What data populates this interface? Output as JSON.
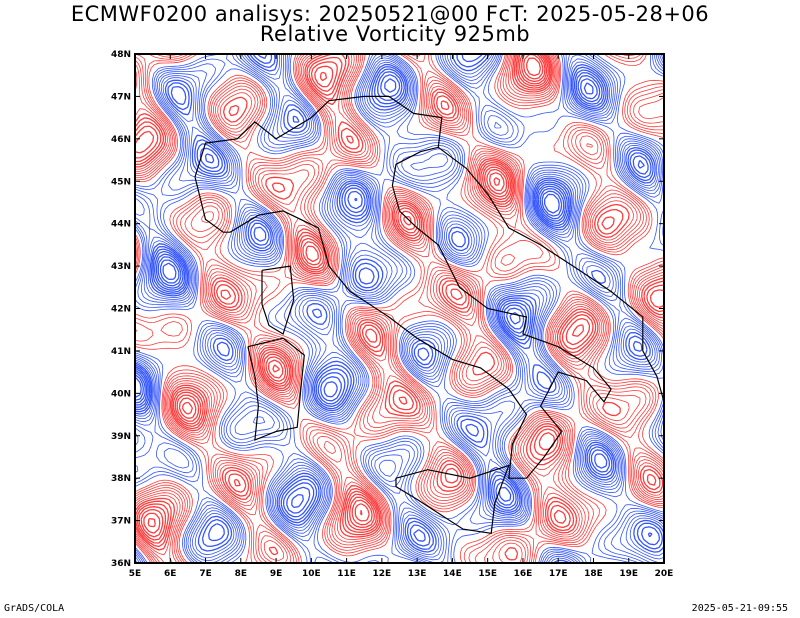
{
  "header": {
    "title_line1": "ECMWF0200 analisys: 20250521@00 FcT: 2025-05-28+06",
    "title_line2": "Relative Vorticity 925mb"
  },
  "footer": {
    "left": "GrADS/COLA",
    "right": "2025-05-21-09:55"
  },
  "map": {
    "lon_range": [
      5,
      20
    ],
    "lat_range": [
      36,
      48
    ],
    "lon_ticks": [
      "5E",
      "6E",
      "7E",
      "8E",
      "9E",
      "10E",
      "11E",
      "12E",
      "13E",
      "14E",
      "15E",
      "16E",
      "17E",
      "18E",
      "19E",
      "20E"
    ],
    "lat_ticks": [
      "36N",
      "37N",
      "38N",
      "39N",
      "40N",
      "41N",
      "42N",
      "43N",
      "44N",
      "45N",
      "46N",
      "47N",
      "48N"
    ],
    "colors": {
      "positive": "#ff3b3b",
      "negative": "#3355ff",
      "coast": "#000000",
      "frame": "#000000"
    }
  }
}
